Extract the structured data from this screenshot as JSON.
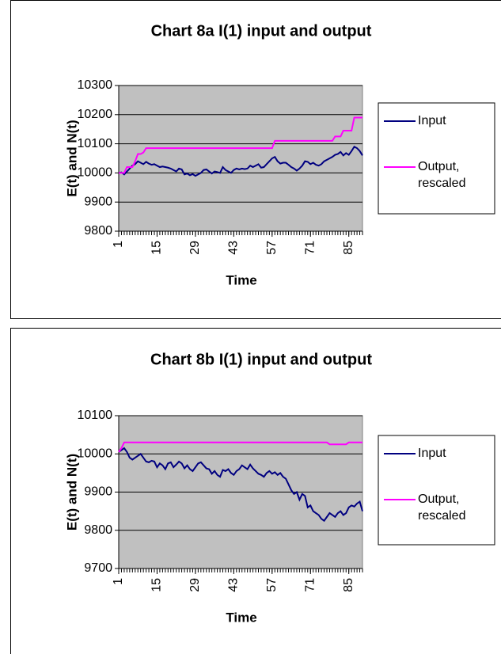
{
  "chart_data": [
    {
      "type": "line",
      "title": "Chart 8a I(1) input and output",
      "x_label": "Time",
      "y_label": "E(t) and N(t)",
      "x": [
        1,
        2,
        3,
        4,
        5,
        6,
        7,
        8,
        9,
        10,
        11,
        12,
        13,
        14,
        15,
        16,
        17,
        18,
        19,
        20,
        21,
        22,
        23,
        24,
        25,
        26,
        27,
        28,
        29,
        30,
        31,
        32,
        33,
        34,
        35,
        36,
        37,
        38,
        39,
        40,
        41,
        42,
        43,
        44,
        45,
        46,
        47,
        48,
        49,
        50,
        51,
        52,
        53,
        54,
        55,
        56,
        57,
        58,
        59,
        60,
        61,
        62,
        63,
        64,
        65,
        66,
        67,
        68,
        69,
        70,
        71,
        72,
        73,
        74,
        75,
        76,
        77,
        78,
        79,
        80,
        81,
        82,
        83,
        84,
        85,
        86,
        87,
        88,
        89,
        90
      ],
      "xlim": [
        1,
        90
      ],
      "xticks": [
        1,
        15,
        29,
        43,
        57,
        71,
        85
      ],
      "ylim": [
        9800,
        10300
      ],
      "yticks": [
        9800,
        9900,
        10000,
        10100,
        10200,
        10300
      ],
      "grid": true,
      "series": [
        {
          "name": "Input",
          "color": "#000080",
          "values": [
            10000,
            10002,
            9995,
            10005,
            10015,
            10025,
            10030,
            10040,
            10035,
            10030,
            10038,
            10032,
            10028,
            10030,
            10025,
            10020,
            10022,
            10020,
            10018,
            10015,
            10010,
            10005,
            10015,
            10012,
            9995,
            9998,
            9992,
            9996,
            9990,
            9995,
            10000,
            10010,
            10012,
            10005,
            9998,
            10005,
            10003,
            10000,
            10020,
            10010,
            10005,
            10000,
            10010,
            10015,
            10012,
            10015,
            10013,
            10015,
            10025,
            10020,
            10025,
            10030,
            10018,
            10020,
            10030,
            10040,
            10050,
            10055,
            10040,
            10032,
            10035,
            10035,
            10028,
            10020,
            10015,
            10008,
            10015,
            10025,
            10040,
            10038,
            10030,
            10035,
            10028,
            10025,
            10030,
            10040,
            10045,
            10050,
            10055,
            10062,
            10065,
            10072,
            10060,
            10068,
            10062,
            10075,
            10090,
            10085,
            10075,
            10060
          ]
        },
        {
          "name": "Output, rescaled",
          "color": "#ff00ff",
          "values": [
            10000,
            10000,
            10000,
            10020,
            10020,
            10020,
            10040,
            10065,
            10065,
            10070,
            10085,
            10085,
            10085,
            10085,
            10085,
            10085,
            10085,
            10085,
            10085,
            10085,
            10085,
            10085,
            10085,
            10085,
            10085,
            10085,
            10085,
            10085,
            10085,
            10085,
            10085,
            10085,
            10085,
            10085,
            10085,
            10085,
            10085,
            10085,
            10085,
            10085,
            10085,
            10085,
            10085,
            10085,
            10085,
            10085,
            10085,
            10085,
            10085,
            10085,
            10085,
            10085,
            10085,
            10085,
            10085,
            10085,
            10085,
            10110,
            10110,
            10110,
            10110,
            10110,
            10110,
            10110,
            10110,
            10110,
            10110,
            10110,
            10110,
            10110,
            10110,
            10110,
            10110,
            10110,
            10110,
            10110,
            10110,
            10110,
            10110,
            10125,
            10125,
            10125,
            10145,
            10145,
            10145,
            10145,
            10190,
            10190,
            10190,
            10190
          ]
        }
      ]
    },
    {
      "type": "line",
      "title": "Chart 8b I(1) input and output",
      "x_label": "Time",
      "y_label": "E(t) and N(t)",
      "x": [
        1,
        2,
        3,
        4,
        5,
        6,
        7,
        8,
        9,
        10,
        11,
        12,
        13,
        14,
        15,
        16,
        17,
        18,
        19,
        20,
        21,
        22,
        23,
        24,
        25,
        26,
        27,
        28,
        29,
        30,
        31,
        32,
        33,
        34,
        35,
        36,
        37,
        38,
        39,
        40,
        41,
        42,
        43,
        44,
        45,
        46,
        47,
        48,
        49,
        50,
        51,
        52,
        53,
        54,
        55,
        56,
        57,
        58,
        59,
        60,
        61,
        62,
        63,
        64,
        65,
        66,
        67,
        68,
        69,
        70,
        71,
        72,
        73,
        74,
        75,
        76,
        77,
        78,
        79,
        80,
        81,
        82,
        83,
        84,
        85,
        86,
        87,
        88,
        89,
        90
      ],
      "xlim": [
        1,
        90
      ],
      "xticks": [
        1,
        15,
        29,
        43,
        57,
        71,
        85
      ],
      "ylim": [
        9700,
        10100
      ],
      "yticks": [
        9700,
        9800,
        9900,
        10000,
        10100
      ],
      "grid": true,
      "series": [
        {
          "name": "Input",
          "color": "#000080",
          "values": [
            10005,
            10010,
            10015,
            10005,
            9990,
            9985,
            9990,
            9995,
            10000,
            9990,
            9980,
            9978,
            9982,
            9980,
            9965,
            9975,
            9970,
            9960,
            9975,
            9978,
            9965,
            9972,
            9980,
            9975,
            9962,
            9970,
            9960,
            9955,
            9965,
            9975,
            9978,
            9970,
            9962,
            9960,
            9948,
            9955,
            9945,
            9940,
            9958,
            9955,
            9960,
            9950,
            9945,
            9955,
            9960,
            9970,
            9965,
            9960,
            9972,
            9962,
            9955,
            9948,
            9945,
            9940,
            9950,
            9955,
            9948,
            9952,
            9945,
            9950,
            9940,
            9935,
            9920,
            9905,
            9895,
            9900,
            9880,
            9895,
            9890,
            9860,
            9865,
            9850,
            9845,
            9840,
            9830,
            9825,
            9835,
            9845,
            9840,
            9835,
            9845,
            9850,
            9840,
            9845,
            9860,
            9865,
            9862,
            9870,
            9875,
            9850
          ]
        },
        {
          "name": "Output, rescaled",
          "color": "#ff00ff",
          "values": [
            10005,
            10015,
            10030,
            10030,
            10030,
            10030,
            10030,
            10030,
            10030,
            10030,
            10030,
            10030,
            10030,
            10030,
            10030,
            10030,
            10030,
            10030,
            10030,
            10030,
            10030,
            10030,
            10030,
            10030,
            10030,
            10030,
            10030,
            10030,
            10030,
            10030,
            10030,
            10030,
            10030,
            10030,
            10030,
            10030,
            10030,
            10030,
            10030,
            10030,
            10030,
            10030,
            10030,
            10030,
            10030,
            10030,
            10030,
            10030,
            10030,
            10030,
            10030,
            10030,
            10030,
            10030,
            10030,
            10030,
            10030,
            10030,
            10030,
            10030,
            10030,
            10030,
            10030,
            10030,
            10030,
            10030,
            10030,
            10030,
            10030,
            10030,
            10030,
            10030,
            10030,
            10030,
            10030,
            10030,
            10030,
            10025,
            10025,
            10025,
            10025,
            10025,
            10025,
            10025,
            10030,
            10030,
            10030,
            10030,
            10030,
            10030
          ]
        }
      ]
    }
  ]
}
